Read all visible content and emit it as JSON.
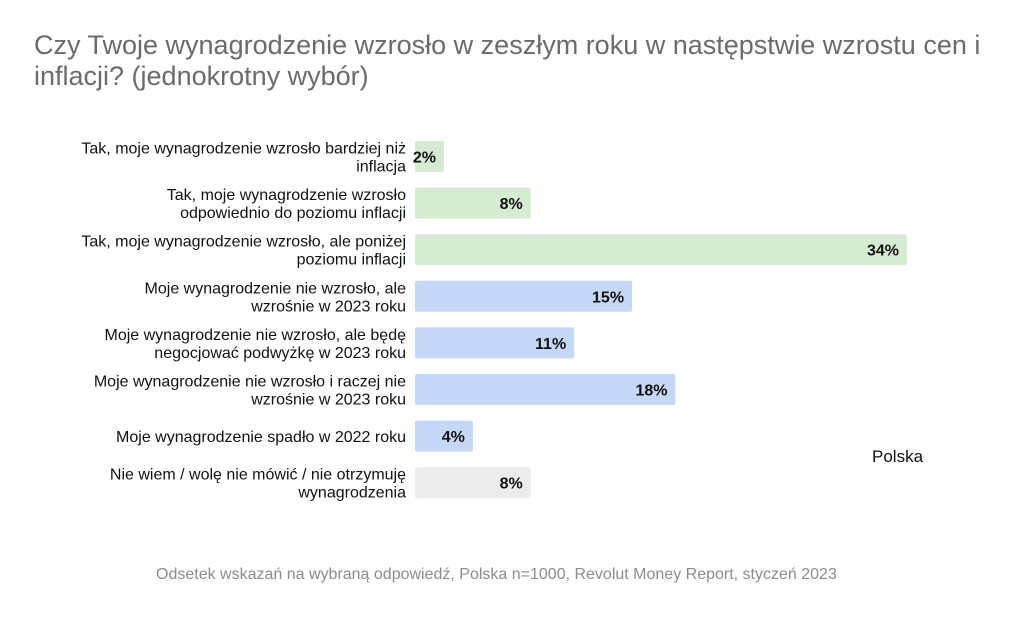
{
  "chart_data": {
    "type": "bar",
    "orientation": "horizontal",
    "title": "Czy Twoje wynagrodzenie wzrosło w zeszłym roku w następstwie wzrostu cen i inflacji? (jednokrotny wybór)",
    "categories": [
      [
        "Tak, moje wynagrodzenie wzrosło bardziej niż",
        "inflacja"
      ],
      [
        "Tak, moje wynagrodzenie wzrosło",
        "odpowiednio do poziomu inflacji"
      ],
      [
        "Tak, moje wynagrodzenie wzrosło, ale poniżej",
        "poziomu inflacji"
      ],
      [
        "Moje wynagrodzenie nie wzrosło, ale",
        "wzrośnie w 2023 roku"
      ],
      [
        "Moje wynagrodzenie nie wzrosło, ale będę",
        "negocjować podwyżkę w 2023 roku"
      ],
      [
        "Moje wynagrodzenie nie wzrosło i raczej nie",
        "wzrośnie w 2023 roku"
      ],
      [
        "Moje wynagrodzenie spadło w 2022 roku"
      ],
      [
        "Nie wiem / wolę nie mówić / nie otrzymuję",
        "wynagrodzenia"
      ]
    ],
    "values": [
      2,
      8,
      34,
      15,
      11,
      18,
      4,
      8
    ],
    "value_labels": [
      "2%",
      "8%",
      "34%",
      "15%",
      "11%",
      "18%",
      "4%",
      "8%"
    ],
    "bar_colors": [
      "#d6ecd2",
      "#d6ecd2",
      "#d6ecd2",
      "#c5d8f7",
      "#c5d8f7",
      "#c5d8f7",
      "#c5d8f7",
      "#ececec"
    ],
    "legend": "Polska",
    "xlim": [
      0,
      34
    ],
    "grid": false
  },
  "footnote": "Odsetek wskazań na wybraną odpowiedź, Polska n=1000, Revolut Money Report, styczeń 2023"
}
